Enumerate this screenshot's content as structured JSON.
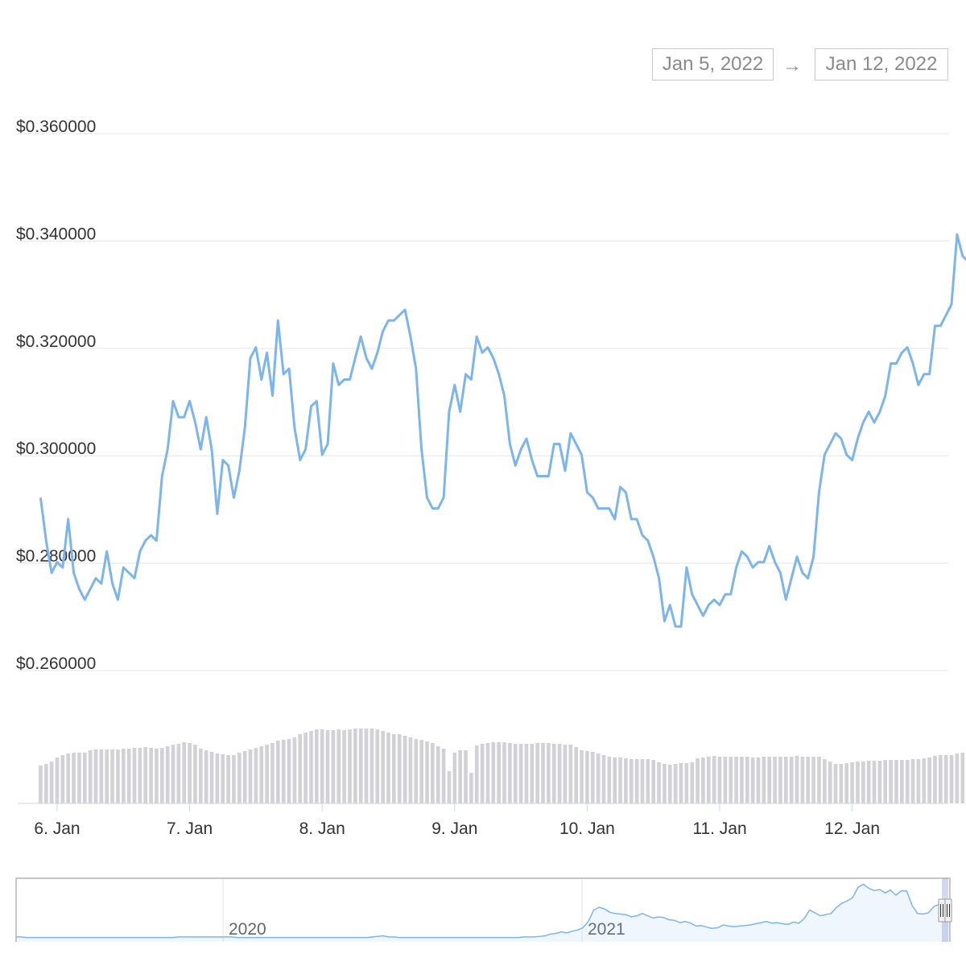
{
  "range_selector": {
    "from": "Jan 5, 2022",
    "arrow": "→",
    "to": "Jan 12, 2022"
  },
  "colors": {
    "line": "#7cb5ec",
    "volume": "#d2d2d6",
    "grid": "#e6e6e6",
    "navigator_mask": "rgba(102,133,194,0.3)"
  },
  "chart_data": [
    {
      "type": "line",
      "title": "",
      "xlabel": "",
      "ylabel": "",
      "ylim": [
        0.26,
        0.36
      ],
      "y_ticks": [
        "$0.260000",
        "$0.280000",
        "$0.300000",
        "$0.320000",
        "$0.340000",
        "$0.360000"
      ],
      "x_ticks": [
        "6. Jan",
        "7. Jan",
        "8. Jan",
        "9. Jan",
        "10. Jan",
        "11. Jan",
        "12. Jan"
      ],
      "x_start": "Jan 5, 2022 21:00",
      "x_end": "Jan 12, 2022 18:00",
      "grid": true,
      "series": [
        {
          "name": "",
          "interval_hours": 1,
          "values": [
            0.2922,
            0.2842,
            0.2782,
            0.2802,
            0.2792,
            0.2882,
            0.2782,
            0.2752,
            0.2732,
            0.2752,
            0.2772,
            0.2762,
            0.2822,
            0.2762,
            0.2732,
            0.2792,
            0.2782,
            0.2772,
            0.2822,
            0.2842,
            0.2852,
            0.2842,
            0.2962,
            0.3012,
            0.3102,
            0.3072,
            0.3072,
            0.3102,
            0.3062,
            0.3012,
            0.3072,
            0.3012,
            0.2892,
            0.2992,
            0.2982,
            0.2922,
            0.2972,
            0.3052,
            0.3182,
            0.3202,
            0.3142,
            0.3192,
            0.3112,
            0.3252,
            0.3152,
            0.3162,
            0.3052,
            0.2992,
            0.3012,
            0.3092,
            0.3102,
            0.3002,
            0.3022,
            0.3172,
            0.3132,
            0.3142,
            0.3142,
            0.3182,
            0.3222,
            0.3182,
            0.3162,
            0.3192,
            0.3232,
            0.3252,
            0.3252,
            0.3262,
            0.3272,
            0.3222,
            0.3162,
            0.3012,
            0.2922,
            0.2902,
            0.2902,
            0.2922,
            0.3082,
            0.3132,
            0.3082,
            0.3152,
            0.3142,
            0.3222,
            0.3192,
            0.3202,
            0.3182,
            0.3152,
            0.3112,
            0.3022,
            0.2982,
            0.3012,
            0.3032,
            0.2992,
            0.2962,
            0.2962,
            0.2962,
            0.3022,
            0.3022,
            0.2972,
            0.3042,
            0.3022,
            0.3002,
            0.2932,
            0.2922,
            0.2902,
            0.2902,
            0.2902,
            0.2882,
            0.2942,
            0.2932,
            0.2882,
            0.2882,
            0.2852,
            0.2842,
            0.2812,
            0.2772,
            0.2692,
            0.2722,
            0.2682,
            0.2682,
            0.2792,
            0.2742,
            0.2722,
            0.2702,
            0.2722,
            0.2732,
            0.2722,
            0.2742,
            0.2742,
            0.2792,
            0.2822,
            0.2812,
            0.2792,
            0.2802,
            0.2802,
            0.2832,
            0.2802,
            0.2782,
            0.2732,
            0.2772,
            0.2812,
            0.2782,
            0.2772,
            0.2812,
            0.2932,
            0.3002,
            0.3022,
            0.3042,
            0.3032,
            0.3002,
            0.2992,
            0.3032,
            0.3062,
            0.3082,
            0.3062,
            0.3082,
            0.3112,
            0.3172,
            0.3172,
            0.3192,
            0.3202,
            0.3172,
            0.3132,
            0.3152,
            0.3152,
            0.3242,
            0.3242,
            0.3262,
            0.3282,
            0.3412,
            0.3372,
            0.3362
          ]
        }
      ]
    },
    {
      "type": "bar",
      "title": "",
      "xlabel": "",
      "ylabel": "",
      "description_units": "relative volume",
      "ylim": [
        0,
        1
      ],
      "series": [
        {
          "name": "",
          "interval_hours": 1,
          "values": [
            0.47,
            0.49,
            0.52,
            0.57,
            0.6,
            0.62,
            0.63,
            0.63,
            0.63,
            0.66,
            0.67,
            0.67,
            0.67,
            0.67,
            0.67,
            0.68,
            0.68,
            0.69,
            0.69,
            0.7,
            0.69,
            0.68,
            0.69,
            0.71,
            0.73,
            0.74,
            0.76,
            0.75,
            0.73,
            0.68,
            0.66,
            0.64,
            0.62,
            0.61,
            0.6,
            0.6,
            0.63,
            0.65,
            0.67,
            0.69,
            0.71,
            0.73,
            0.75,
            0.78,
            0.79,
            0.8,
            0.82,
            0.86,
            0.88,
            0.9,
            0.92,
            0.92,
            0.91,
            0.91,
            0.92,
            0.91,
            0.92,
            0.93,
            0.93,
            0.93,
            0.93,
            0.92,
            0.9,
            0.88,
            0.86,
            0.86,
            0.84,
            0.82,
            0.8,
            0.79,
            0.77,
            0.75,
            0.71,
            0.68,
            0.4,
            0.63,
            0.66,
            0.66,
            0.38,
            0.72,
            0.74,
            0.75,
            0.76,
            0.76,
            0.76,
            0.75,
            0.74,
            0.74,
            0.74,
            0.74,
            0.75,
            0.75,
            0.75,
            0.74,
            0.74,
            0.73,
            0.73,
            0.7,
            0.66,
            0.65,
            0.64,
            0.62,
            0.6,
            0.58,
            0.57,
            0.57,
            0.56,
            0.55,
            0.55,
            0.55,
            0.55,
            0.54,
            0.51,
            0.49,
            0.48,
            0.49,
            0.5,
            0.5,
            0.51,
            0.56,
            0.57,
            0.58,
            0.59,
            0.58,
            0.58,
            0.58,
            0.58,
            0.58,
            0.58,
            0.57,
            0.57,
            0.58,
            0.58,
            0.58,
            0.58,
            0.58,
            0.58,
            0.59,
            0.58,
            0.58,
            0.58,
            0.58,
            0.55,
            0.52,
            0.49,
            0.49,
            0.5,
            0.51,
            0.52,
            0.52,
            0.53,
            0.53,
            0.53,
            0.54,
            0.54,
            0.54,
            0.54,
            0.54,
            0.55,
            0.55,
            0.56,
            0.57,
            0.59,
            0.6,
            0.6,
            0.6,
            0.62,
            0.63,
            0.64,
            0.66,
            0.67,
            0.67
          ]
        }
      ]
    },
    {
      "type": "area",
      "title": "",
      "xlabel": "",
      "ylabel": "",
      "x_ticks": [
        "2020",
        "2021"
      ],
      "selected_range": [
        "Jan 5, 2022",
        "Jan 12, 2022"
      ],
      "series": [
        {
          "name": "",
          "values_relative": [
            0.03,
            0.03,
            0.02,
            0.02,
            0.02,
            0.02,
            0.02,
            0.02,
            0.02,
            0.02,
            0.02,
            0.02,
            0.02,
            0.02,
            0.02,
            0.02,
            0.02,
            0.02,
            0.02,
            0.02,
            0.02,
            0.02,
            0.02,
            0.02,
            0.02,
            0.02,
            0.02,
            0.02,
            0.02,
            0.02,
            0.03,
            0.03,
            0.03,
            0.03,
            0.03,
            0.03,
            0.03,
            0.03,
            0.03,
            0.03,
            0.03,
            0.02,
            0.02,
            0.02,
            0.02,
            0.02,
            0.02,
            0.02,
            0.02,
            0.02,
            0.02,
            0.02,
            0.02,
            0.02,
            0.02,
            0.02,
            0.02,
            0.02,
            0.02,
            0.02,
            0.02,
            0.02,
            0.02,
            0.02,
            0.02,
            0.02,
            0.03,
            0.04,
            0.05,
            0.03,
            0.03,
            0.02,
            0.02,
            0.02,
            0.02,
            0.02,
            0.02,
            0.02,
            0.02,
            0.02,
            0.02,
            0.02,
            0.02,
            0.02,
            0.02,
            0.02,
            0.02,
            0.02,
            0.02,
            0.02,
            0.02,
            0.02,
            0.02,
            0.02,
            0.03,
            0.03,
            0.03,
            0.04,
            0.05,
            0.08,
            0.09,
            0.12,
            0.1,
            0.13,
            0.15,
            0.19,
            0.3,
            0.5,
            0.55,
            0.52,
            0.46,
            0.44,
            0.43,
            0.42,
            0.38,
            0.4,
            0.44,
            0.4,
            0.36,
            0.38,
            0.37,
            0.33,
            0.32,
            0.28,
            0.3,
            0.27,
            0.22,
            0.23,
            0.2,
            0.18,
            0.19,
            0.24,
            0.22,
            0.21,
            0.22,
            0.23,
            0.24,
            0.26,
            0.28,
            0.3,
            0.27,
            0.28,
            0.26,
            0.25,
            0.29,
            0.27,
            0.35,
            0.5,
            0.45,
            0.4,
            0.42,
            0.44,
            0.55,
            0.62,
            0.66,
            0.72,
            0.9,
            0.95,
            0.88,
            0.84,
            0.86,
            0.8,
            0.85,
            0.76,
            0.84,
            0.83,
            0.58,
            0.44,
            0.43,
            0.45,
            0.56,
            0.6,
            0.64,
            0.66
          ]
        }
      ]
    }
  ]
}
